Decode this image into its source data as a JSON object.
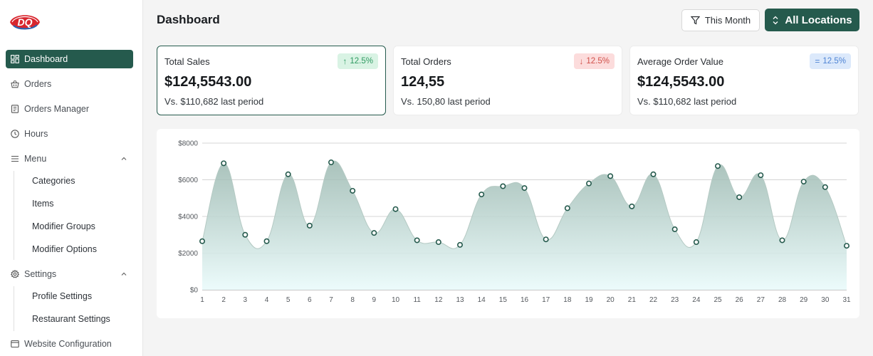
{
  "header": {
    "title": "Dashboard",
    "filter_label": "This Month",
    "location_label": "All Locations"
  },
  "sidebar": {
    "items": [
      {
        "label": "Dashboard",
        "icon": "dashboard-icon",
        "active": true
      },
      {
        "label": "Orders",
        "icon": "basket-icon"
      },
      {
        "label": "Orders Manager",
        "icon": "document-icon"
      },
      {
        "label": "Hours",
        "icon": "clock-icon"
      },
      {
        "label": "Menu",
        "icon": "menu-lines-icon",
        "expanded": true,
        "children": [
          "Categories",
          "Items",
          "Modifier Groups",
          "Modifier Options"
        ]
      },
      {
        "label": "Settings",
        "icon": "gear-icon",
        "expanded": true,
        "children": [
          "Profile Settings",
          "Restaurant Settings"
        ]
      },
      {
        "label": "Website Configuration",
        "icon": "browser-icon"
      }
    ]
  },
  "stats": [
    {
      "label": "Total Sales",
      "value": "$124,5543.00",
      "comparison": "Vs. $110,682 last period",
      "change": "12.5%",
      "trend": "up",
      "selected": true
    },
    {
      "label": "Total Orders",
      "value": "124,55",
      "comparison": "Vs. 150,80 last period",
      "change": "12.5%",
      "trend": "down"
    },
    {
      "label": "Average Order Value",
      "value": "$124,5543.00",
      "comparison": "Vs. $110,682 last period",
      "change": "12.5%",
      "trend": "flat"
    }
  ],
  "colors": {
    "brand": "#255a4d",
    "up": "#2f9a61",
    "down": "#d0504a",
    "flat": "#4d83d4"
  },
  "chart_data": {
    "type": "area",
    "x": [
      1,
      2,
      3,
      4,
      5,
      6,
      7,
      8,
      9,
      10,
      11,
      12,
      13,
      14,
      15,
      16,
      17,
      18,
      19,
      20,
      21,
      22,
      23,
      24,
      25,
      26,
      27,
      28,
      29,
      30,
      31
    ],
    "values": [
      2650,
      6900,
      3000,
      2650,
      6300,
      3500,
      6950,
      5400,
      3100,
      4400,
      2700,
      2600,
      2450,
      5200,
      5650,
      5550,
      2750,
      4450,
      5800,
      6200,
      4550,
      6300,
      3300,
      2600,
      6750,
      5050,
      6250,
      2700,
      5900,
      5600,
      2400
    ],
    "yticks": [
      "$0",
      "$2000",
      "$4000",
      "$6000",
      "$8000"
    ],
    "ylim": [
      0,
      8000
    ],
    "grid": true
  }
}
